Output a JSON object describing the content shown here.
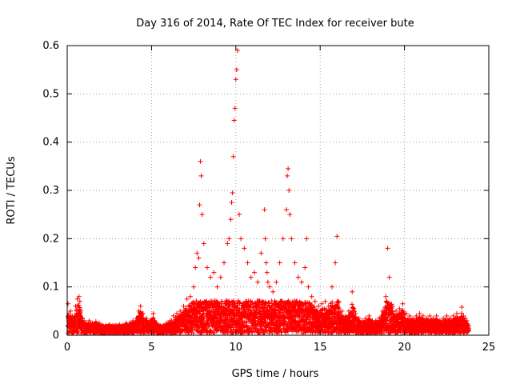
{
  "chart_data": {
    "type": "scatter",
    "title": "Day 316 of 2014, Rate Of TEC Index for receiver bute",
    "xlabel": "GPS time / hours",
    "ylabel": "ROTI / TECUs",
    "xlim": [
      0,
      25
    ],
    "ylim": [
      0,
      0.6
    ],
    "x_ticks": [
      0,
      5,
      10,
      15,
      20,
      25
    ],
    "x_tick_labels": [
      "0",
      "5",
      "10",
      "15",
      "20",
      "25"
    ],
    "y_ticks": [
      0,
      0.1,
      0.2,
      0.3,
      0.4,
      0.5,
      0.6
    ],
    "y_tick_labels": [
      "0",
      "0.1",
      "0.2",
      "0.3",
      "0.4",
      "0.5",
      "0.6"
    ],
    "grid": true,
    "marker": "+",
    "color": "#ff0000",
    "series": [
      {
        "name": "ROTI",
        "x": [
          0.05,
          0.1,
          0.2,
          0.3,
          0.4,
          0.5,
          0.6,
          0.7,
          0.75,
          0.8,
          0.9,
          1.0,
          1.1,
          1.3,
          1.5,
          1.7,
          1.9,
          2.1,
          2.3,
          2.5,
          2.7,
          2.9,
          3.1,
          3.3,
          3.5,
          3.7,
          3.9,
          4.1,
          4.25,
          4.35,
          4.5,
          4.7,
          4.9,
          5.1,
          5.3,
          5.5,
          5.7,
          5.9,
          6.1,
          6.3,
          6.5,
          6.7,
          6.9,
          7.1,
          7.3,
          7.5,
          7.6,
          7.7,
          7.8,
          7.85,
          7.9,
          7.95,
          8.0,
          8.1,
          8.3,
          8.5,
          8.7,
          8.9,
          9.1,
          9.3,
          9.5,
          9.6,
          9.7,
          9.75,
          9.8,
          9.85,
          9.9,
          9.95,
          10.0,
          10.05,
          10.1,
          10.2,
          10.3,
          10.5,
          10.7,
          10.9,
          11.1,
          11.3,
          11.5,
          11.7,
          11.75,
          11.8,
          11.85,
          11.9,
          12.0,
          12.2,
          12.4,
          12.6,
          12.8,
          13.0,
          13.05,
          13.1,
          13.15,
          13.2,
          13.3,
          13.5,
          13.7,
          13.9,
          14.1,
          14.2,
          14.3,
          14.5,
          14.7,
          14.9,
          15.1,
          15.3,
          15.5,
          15.7,
          15.9,
          16.0,
          16.1,
          16.3,
          16.5,
          16.7,
          16.9,
          17.1,
          17.3,
          17.5,
          17.7,
          17.9,
          18.1,
          18.3,
          18.5,
          18.7,
          18.9,
          19.0,
          19.1,
          19.3,
          19.5,
          19.7,
          19.9,
          20.1,
          20.3,
          20.5,
          20.7,
          20.9,
          21.1,
          21.3,
          21.5,
          21.7,
          21.9,
          22.1,
          22.3,
          22.5,
          22.7,
          22.9,
          23.1,
          23.3,
          23.4,
          23.5,
          23.6,
          23.7,
          23.8
        ],
        "y": [
          0.065,
          0.045,
          0.05,
          0.04,
          0.035,
          0.06,
          0.075,
          0.08,
          0.07,
          0.05,
          0.035,
          0.03,
          0.025,
          0.03,
          0.025,
          0.028,
          0.025,
          0.02,
          0.02,
          0.022,
          0.02,
          0.02,
          0.022,
          0.02,
          0.025,
          0.025,
          0.03,
          0.035,
          0.05,
          0.06,
          0.045,
          0.035,
          0.03,
          0.045,
          0.025,
          0.02,
          0.02,
          0.025,
          0.03,
          0.04,
          0.045,
          0.05,
          0.06,
          0.075,
          0.08,
          0.1,
          0.14,
          0.17,
          0.16,
          0.27,
          0.36,
          0.33,
          0.25,
          0.19,
          0.14,
          0.12,
          0.13,
          0.1,
          0.12,
          0.15,
          0.19,
          0.2,
          0.24,
          0.275,
          0.295,
          0.37,
          0.445,
          0.47,
          0.53,
          0.55,
          0.59,
          0.25,
          0.2,
          0.18,
          0.15,
          0.12,
          0.13,
          0.11,
          0.17,
          0.26,
          0.2,
          0.15,
          0.13,
          0.11,
          0.1,
          0.09,
          0.11,
          0.15,
          0.2,
          0.26,
          0.33,
          0.345,
          0.3,
          0.25,
          0.2,
          0.15,
          0.12,
          0.11,
          0.14,
          0.2,
          0.1,
          0.08,
          0.07,
          0.06,
          0.065,
          0.07,
          0.06,
          0.1,
          0.15,
          0.205,
          0.07,
          0.05,
          0.04,
          0.05,
          0.09,
          0.045,
          0.035,
          0.03,
          0.035,
          0.04,
          0.03,
          0.03,
          0.035,
          0.05,
          0.08,
          0.18,
          0.12,
          0.06,
          0.05,
          0.055,
          0.065,
          0.045,
          0.04,
          0.035,
          0.04,
          0.045,
          0.04,
          0.035,
          0.04,
          0.035,
          0.04,
          0.03,
          0.035,
          0.04,
          0.035,
          0.04,
          0.045,
          0.035,
          0.058,
          0.04,
          0.035,
          0.03,
          0.02
        ]
      }
    ]
  }
}
